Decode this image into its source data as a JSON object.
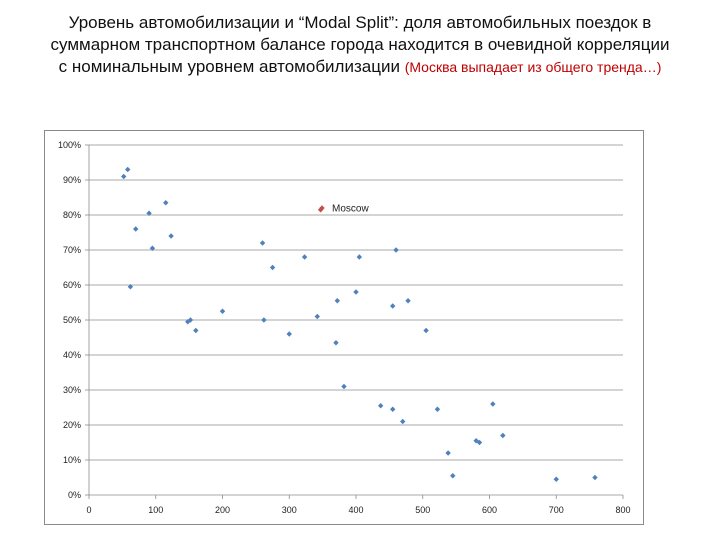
{
  "page": {
    "title_line1": "Уровень автомобилизации и “Modal Split”: доля автомобильных поездок в",
    "title_line2": "суммарном транспортном балансе города находится в очевидной корреляции",
    "title_line3": "с номинальным уровнем автомобилизации",
    "title_highlight": "(Москва выпадает из общего тренда…)"
  },
  "chart_data": {
    "type": "scatter",
    "title": "",
    "xlabel": "",
    "ylabel": "",
    "xlim": [
      0,
      800
    ],
    "ylim": [
      0,
      100
    ],
    "x_ticks": [
      0,
      100,
      200,
      300,
      400,
      500,
      600,
      700,
      800
    ],
    "y_ticks": [
      0,
      10,
      20,
      30,
      40,
      50,
      60,
      70,
      80,
      90,
      100
    ],
    "y_tick_labels": [
      "0%",
      "10%",
      "20%",
      "30%",
      "40%",
      "50%",
      "60%",
      "70%",
      "80%",
      "90%",
      "100%"
    ],
    "grid": "horizontal",
    "marker_color": "#4f81bd",
    "highlight_color": "#c0504d",
    "series": [
      {
        "points": [
          [
            52,
            91
          ],
          [
            58,
            93
          ],
          [
            62,
            59.5
          ],
          [
            70,
            76
          ],
          [
            90,
            80.5
          ],
          [
            95,
            70.5
          ],
          [
            115,
            83.5
          ],
          [
            123,
            74
          ],
          [
            148,
            49.5
          ],
          [
            152,
            50
          ],
          [
            160,
            47
          ],
          [
            200,
            52.5
          ],
          [
            260,
            72
          ],
          [
            262,
            50
          ],
          [
            275,
            65
          ],
          [
            300,
            46
          ],
          [
            323,
            68
          ],
          [
            342,
            51
          ],
          [
            370,
            43.5
          ],
          [
            372,
            55.5
          ],
          [
            382,
            31
          ],
          [
            400,
            58
          ],
          [
            405,
            68
          ],
          [
            437,
            25.5
          ],
          [
            455,
            24.5
          ],
          [
            455,
            54
          ],
          [
            460,
            70
          ],
          [
            470,
            21
          ],
          [
            478,
            55.5
          ],
          [
            505,
            47
          ],
          [
            522,
            24.5
          ],
          [
            538,
            12
          ],
          [
            545,
            5.5
          ],
          [
            580,
            15.5
          ],
          [
            585,
            15
          ],
          [
            605,
            26
          ],
          [
            620,
            17
          ],
          [
            700,
            4.5
          ],
          [
            758,
            5
          ]
        ]
      },
      {
        "name": "Moscow",
        "points": [
          [
            347,
            81.5
          ]
        ]
      }
    ]
  }
}
